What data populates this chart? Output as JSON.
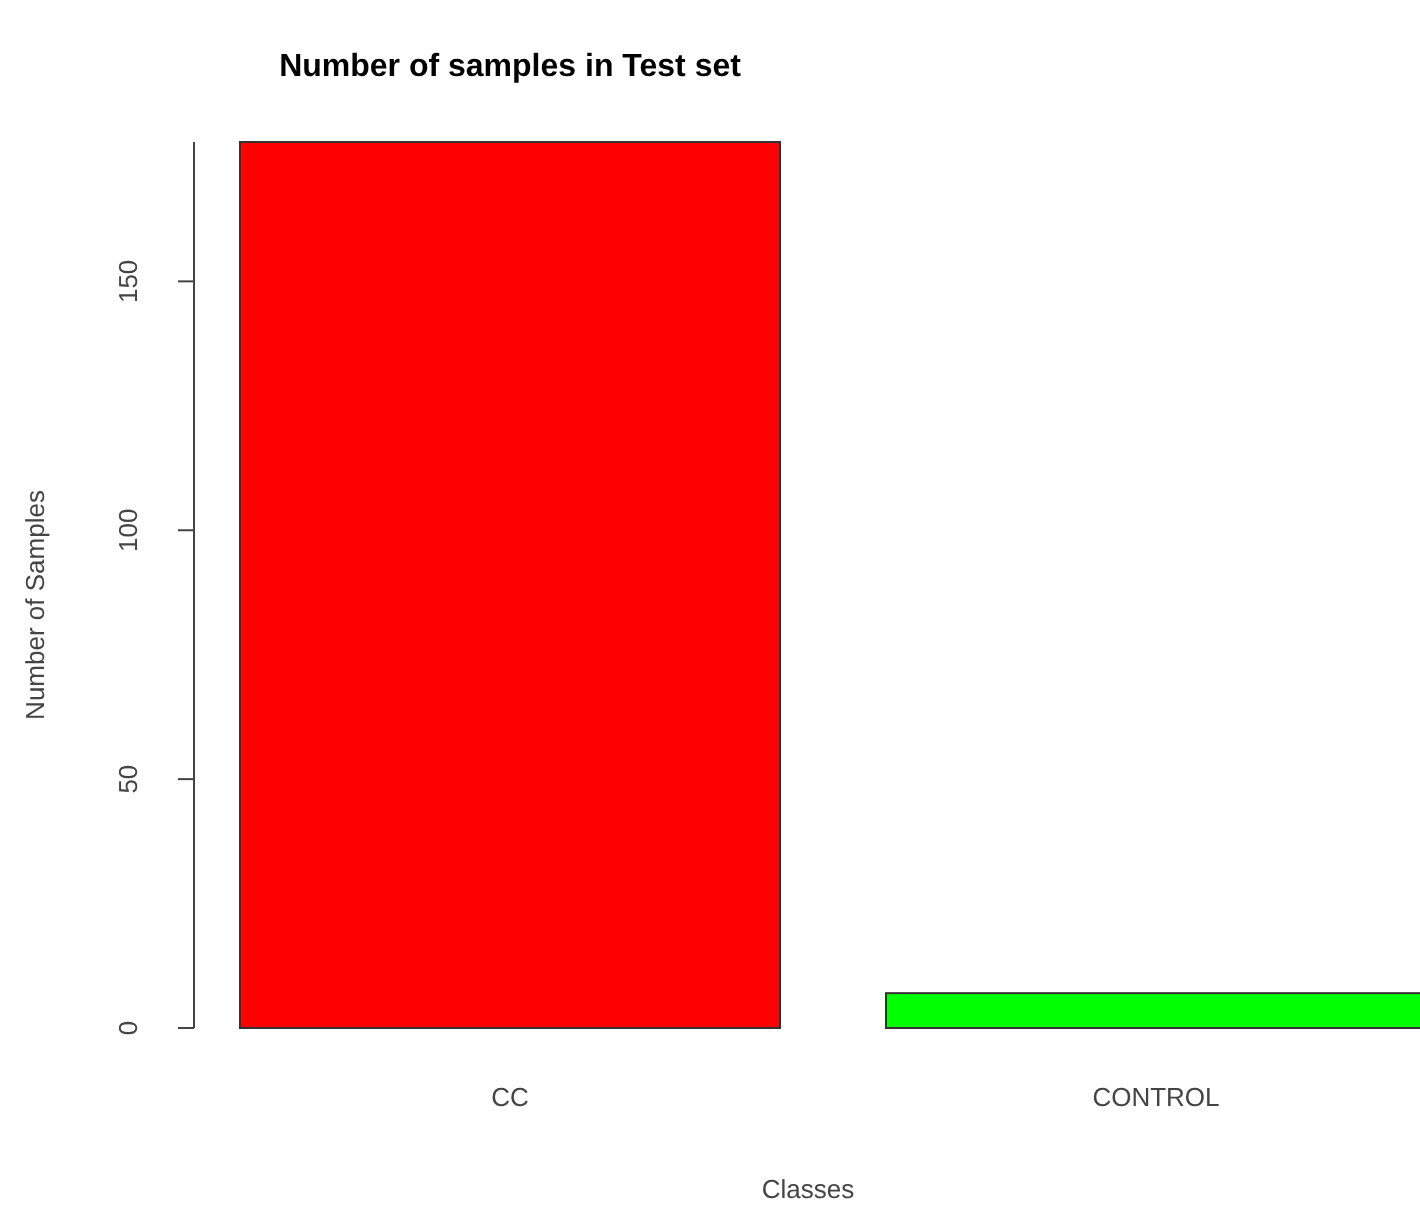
{
  "chart_data": {
    "type": "bar",
    "title": "Number of samples in Test set",
    "xlabel": "Classes",
    "ylabel": "Number of Samples",
    "categories": [
      "CC",
      "CONTROL"
    ],
    "values": [
      178,
      7
    ],
    "colors": [
      "#ff0000",
      "#00ff00"
    ],
    "ylim": [
      0,
      178
    ],
    "yticks": [
      0,
      50,
      100,
      150
    ],
    "grid": false
  }
}
